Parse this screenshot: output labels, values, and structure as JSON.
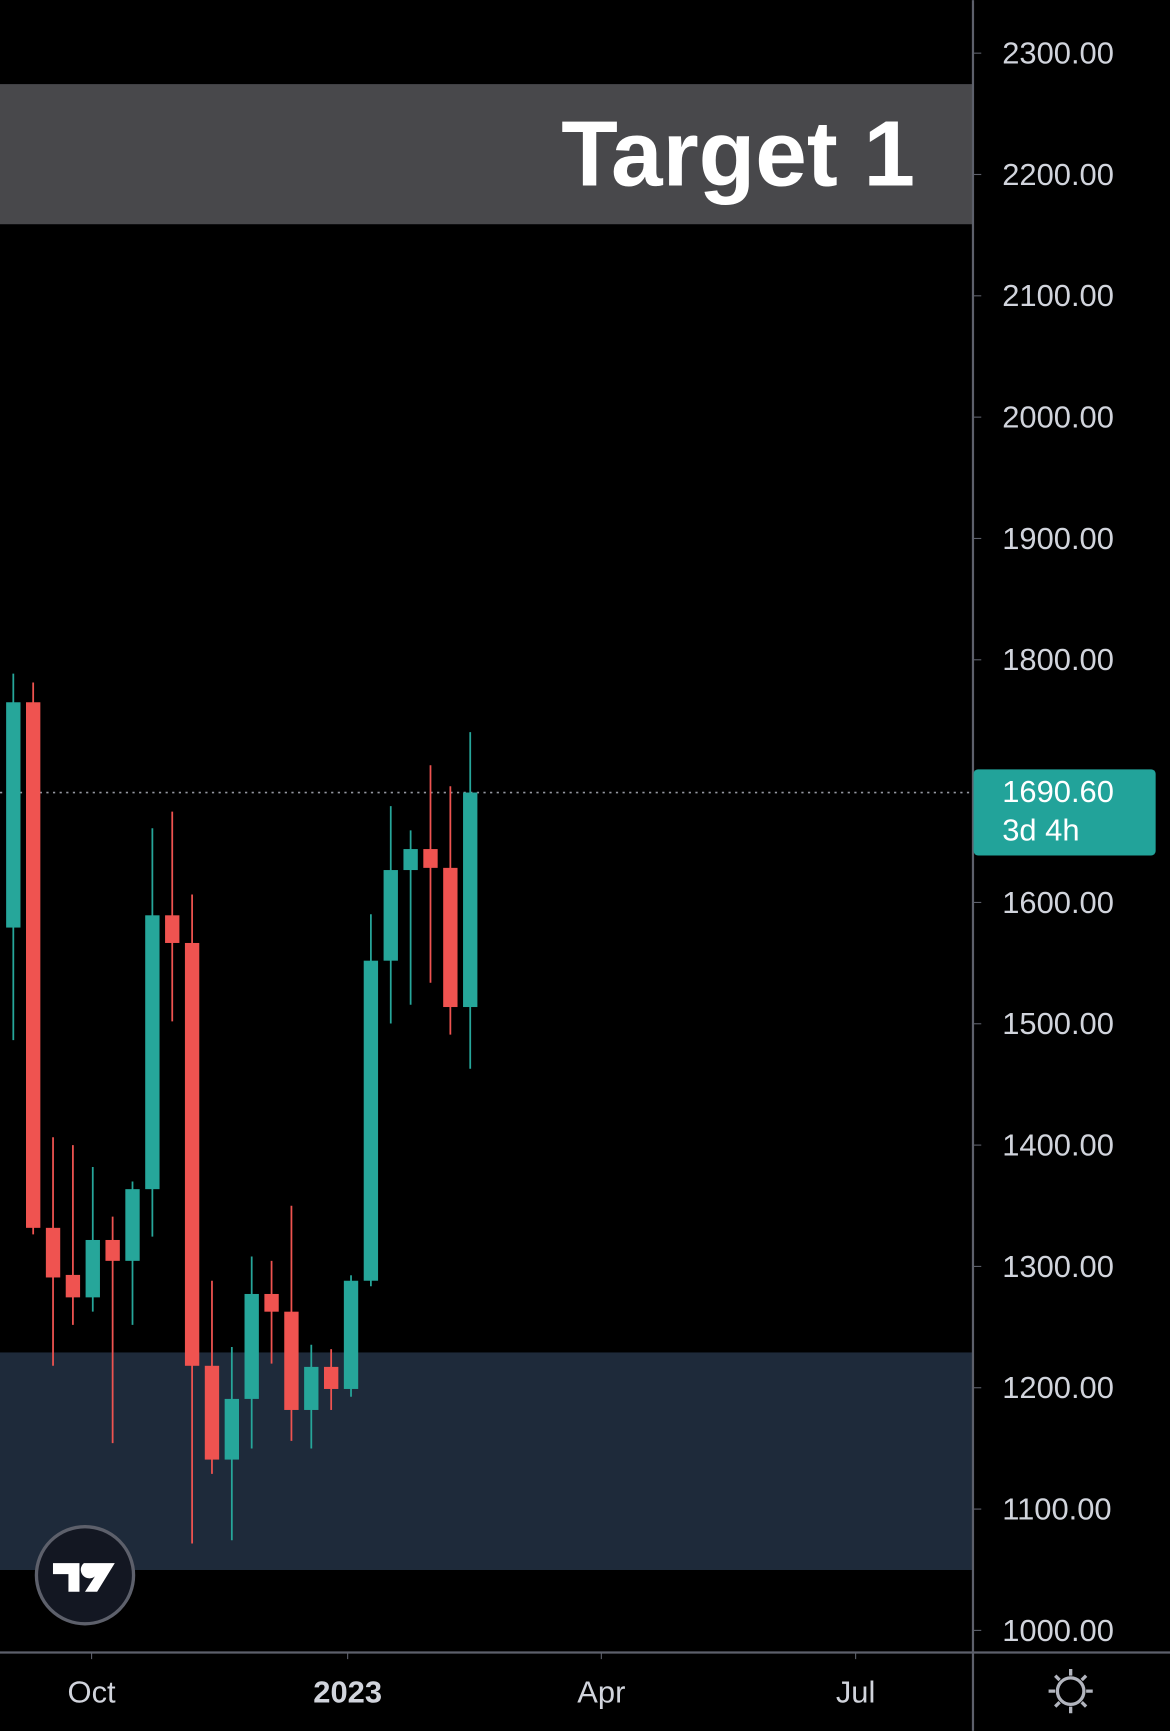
{
  "chart_data": {
    "type": "candlestick",
    "x": [
      0,
      1,
      2,
      3,
      4,
      5,
      6,
      7,
      8,
      9,
      10,
      11,
      12,
      13,
      14,
      15,
      16,
      17,
      18,
      19,
      20,
      21,
      22,
      23
    ],
    "open": [
      1579.3,
      1765.0,
      1331.8,
      1293.0,
      1274.5,
      1321.8,
      1304.6,
      1363.7,
      1589.4,
      1566.6,
      1218.1,
      1140.8,
      1190.8,
      1277.3,
      1262.7,
      1181.7,
      1217.2,
      1199.0,
      1288.2,
      1552.0,
      1626.7,
      1644.0,
      1628.5,
      1513.8
    ],
    "high": [
      1788.6,
      1781.3,
      1406.5,
      1400.0,
      1381.9,
      1341.0,
      1370.0,
      1661.2,
      1674.9,
      1606.6,
      1288.2,
      1233.6,
      1308.2,
      1304.6,
      1350.0,
      1235.4,
      1231.8,
      1292.7,
      1590.3,
      1679.4,
      1659.4,
      1713.1,
      1695.8,
      1740.4
    ],
    "low": [
      1486.5,
      1326.4,
      1218.1,
      1251.8,
      1262.7,
      1154.4,
      1251.8,
      1324.6,
      1502.0,
      1071.6,
      1129.0,
      1074.3,
      1149.9,
      1219.9,
      1156.2,
      1149.9,
      1181.7,
      1192.6,
      1283.7,
      1500.2,
      1515.7,
      1533.8,
      1491.1,
      1462.9
    ],
    "close": [
      1765.0,
      1331.8,
      1290.9,
      1274.5,
      1321.8,
      1304.6,
      1363.7,
      1589.4,
      1566.6,
      1218.1,
      1140.8,
      1190.8,
      1277.3,
      1262.7,
      1181.7,
      1217.2,
      1199.0,
      1288.2,
      1552.0,
      1626.7,
      1644.0,
      1628.5,
      1513.8,
      1690.6
    ],
    "up_color": "#26a69a",
    "down_color": "#ef5350",
    "xlim": [
      -0.67,
      48.28
    ],
    "xticks": [
      {
        "value": 3.94,
        "label": "Oct"
      },
      {
        "value": 16.83,
        "label": "2023"
      },
      {
        "value": 29.6,
        "label": "Apr"
      },
      {
        "value": 42.4,
        "label": "Jul"
      }
    ],
    "ylim": [
      981.8,
      2343.7
    ],
    "yticks": [
      {
        "value": 1000,
        "label": "1000.00"
      },
      {
        "value": 1100,
        "label": "1100.00"
      },
      {
        "value": 1200,
        "label": "1200.00"
      },
      {
        "value": 1300,
        "label": "1300.00"
      },
      {
        "value": 1400,
        "label": "1400.00"
      },
      {
        "value": 1500,
        "label": "1500.00"
      },
      {
        "value": 1600,
        "label": "1600.00"
      },
      {
        "value": 1800,
        "label": "1800.00"
      },
      {
        "value": 1900,
        "label": "1900.00"
      },
      {
        "value": 2000,
        "label": "2000.00"
      },
      {
        "value": 2100,
        "label": "2100.00"
      },
      {
        "value": 2200,
        "label": "2200.00"
      },
      {
        "value": 2300,
        "label": "2300.00"
      }
    ],
    "zones": [
      {
        "label": "Target 1",
        "from": 2159.0,
        "to": 2274.5,
        "color": "#48484b"
      },
      {
        "from": 1049.8,
        "to": 1229.1,
        "color": "#1e2a3a"
      }
    ],
    "price_line": {
      "value": 1690.6,
      "label": "1690.60",
      "countdown": "3d 4h",
      "color": "#22a39a"
    }
  }
}
